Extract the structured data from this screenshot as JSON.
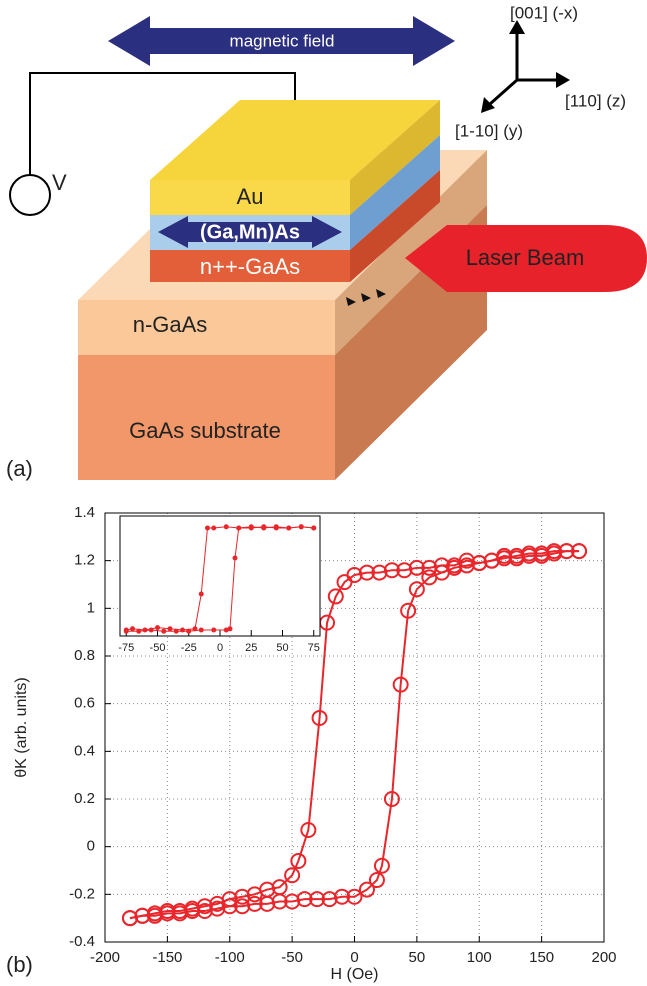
{
  "figure": {
    "field_label": "magnetic field",
    "voltage_label": "V",
    "axis_up": "[001] (-x)",
    "axis_right": "[110] (z)",
    "axis_down": "[1-10] (y)",
    "layer_au": "Au",
    "layer_gamnas": "(Ga,Mn)As",
    "layer_npp": "n++-GaAs",
    "layer_n": "n-GaAs",
    "layer_substrate": "GaAs substrate",
    "laser_label": "Laser Beam",
    "panel_a": "(a)",
    "panel_b": "(b)"
  },
  "chart_data": [
    {
      "type": "line",
      "xlabel": "H (Oe)",
      "ylabel": "θK (arb. units)",
      "xlim": [
        -200,
        200
      ],
      "ylim": [
        -0.4,
        1.4
      ],
      "xticks": [
        -200,
        -150,
        -100,
        -50,
        0,
        50,
        100,
        150,
        200
      ],
      "yticks": [
        -0.4,
        -0.2,
        0,
        0.2,
        0.4,
        0.6,
        0.8,
        1,
        1.2,
        1.4
      ],
      "grid": true,
      "marker": "circle",
      "series": [
        {
          "color": "#e8262b",
          "x": [
            180,
            170,
            160,
            150,
            140,
            130,
            120,
            110,
            100,
            90,
            80,
            70,
            60,
            50,
            40,
            30,
            20,
            10,
            0,
            -8,
            -15,
            -22,
            -28,
            -37,
            -45,
            -50,
            -60,
            -70,
            -80,
            -90,
            -100,
            -110,
            -120,
            -130,
            -140,
            -150,
            -160,
            -170,
            -180
          ],
          "values": [
            1.24,
            1.24,
            1.23,
            1.22,
            1.22,
            1.21,
            1.22,
            1.2,
            1.19,
            1.2,
            1.18,
            1.18,
            1.17,
            1.17,
            1.16,
            1.16,
            1.15,
            1.15,
            1.14,
            1.11,
            1.05,
            0.94,
            0.54,
            0.07,
            -0.06,
            -0.12,
            -0.17,
            -0.18,
            -0.2,
            -0.21,
            -0.22,
            -0.24,
            -0.25,
            -0.26,
            -0.27,
            -0.27,
            -0.28,
            -0.29,
            -0.3
          ]
        },
        {
          "color": "#e8262b",
          "x": [
            -180,
            -170,
            -160,
            -150,
            -140,
            -130,
            -120,
            -110,
            -100,
            -90,
            -80,
            -70,
            -60,
            -50,
            -40,
            -30,
            -20,
            -10,
            0,
            10,
            18,
            22,
            30,
            37,
            43,
            50,
            60,
            70,
            80,
            90,
            100,
            110,
            120,
            130,
            140,
            150,
            160,
            170,
            180
          ],
          "values": [
            -0.3,
            -0.29,
            -0.29,
            -0.28,
            -0.28,
            -0.27,
            -0.27,
            -0.26,
            -0.25,
            -0.25,
            -0.24,
            -0.24,
            -0.23,
            -0.23,
            -0.22,
            -0.22,
            -0.22,
            -0.21,
            -0.21,
            -0.18,
            -0.14,
            -0.08,
            0.2,
            0.68,
            0.99,
            1.08,
            1.13,
            1.15,
            1.17,
            1.18,
            1.19,
            1.2,
            1.21,
            1.22,
            1.23,
            1.23,
            1.24,
            1.24,
            1.24
          ]
        }
      ]
    },
    {
      "type": "line",
      "xlim": [
        -80,
        80
      ],
      "ylim": [
        0,
        1
      ],
      "xticks": [
        -75,
        -50,
        -25,
        0,
        25,
        50,
        75
      ],
      "grid": false,
      "marker": "dot",
      "series": [
        {
          "color": "#e8262b",
          "x": [
            75,
            65,
            55,
            45,
            35,
            25,
            15,
            5,
            -5,
            -10,
            -15,
            -20,
            -30,
            -40,
            -50,
            -60,
            -70,
            -75
          ],
          "values": [
            0.9,
            0.91,
            0.9,
            0.9,
            0.91,
            0.9,
            0.9,
            0.91,
            0.9,
            0.9,
            0.35,
            0.06,
            0.05,
            0.06,
            0.07,
            0.05,
            0.06,
            0.05
          ]
        },
        {
          "color": "#e8262b",
          "x": [
            -75,
            -65,
            -55,
            -45,
            -35,
            -25,
            -15,
            -5,
            5,
            8,
            12,
            15,
            25,
            35,
            45,
            55,
            65,
            75
          ],
          "values": [
            0.04,
            0.04,
            0.05,
            0.04,
            0.04,
            0.04,
            0.05,
            0.05,
            0.05,
            0.06,
            0.65,
            0.9,
            0.91,
            0.9,
            0.91,
            0.9,
            0.91,
            0.9
          ]
        }
      ]
    }
  ]
}
